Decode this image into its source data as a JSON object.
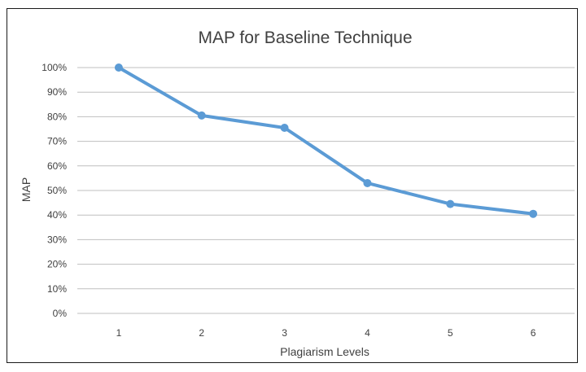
{
  "chart_data": {
    "type": "line",
    "title": "MAP for Baseline Technique",
    "xlabel": "Plagiarism Levels",
    "ylabel": "MAP",
    "categories": [
      "1",
      "2",
      "3",
      "4",
      "5",
      "6"
    ],
    "series": [
      {
        "values": [
          100,
          80.5,
          75.5,
          53,
          44.5,
          40.5
        ]
      }
    ],
    "ylim": [
      0,
      100
    ],
    "ytick_labels": [
      "0%",
      "10%",
      "20%",
      "30%",
      "40%",
      "50%",
      "60%",
      "70%",
      "80%",
      "90%",
      "100%"
    ],
    "grid": true,
    "legend": "none",
    "colors": {
      "line": "#5b9bd5",
      "grid": "#bfbfbf",
      "text": "#404040",
      "frame": "#1a1a1a"
    }
  }
}
